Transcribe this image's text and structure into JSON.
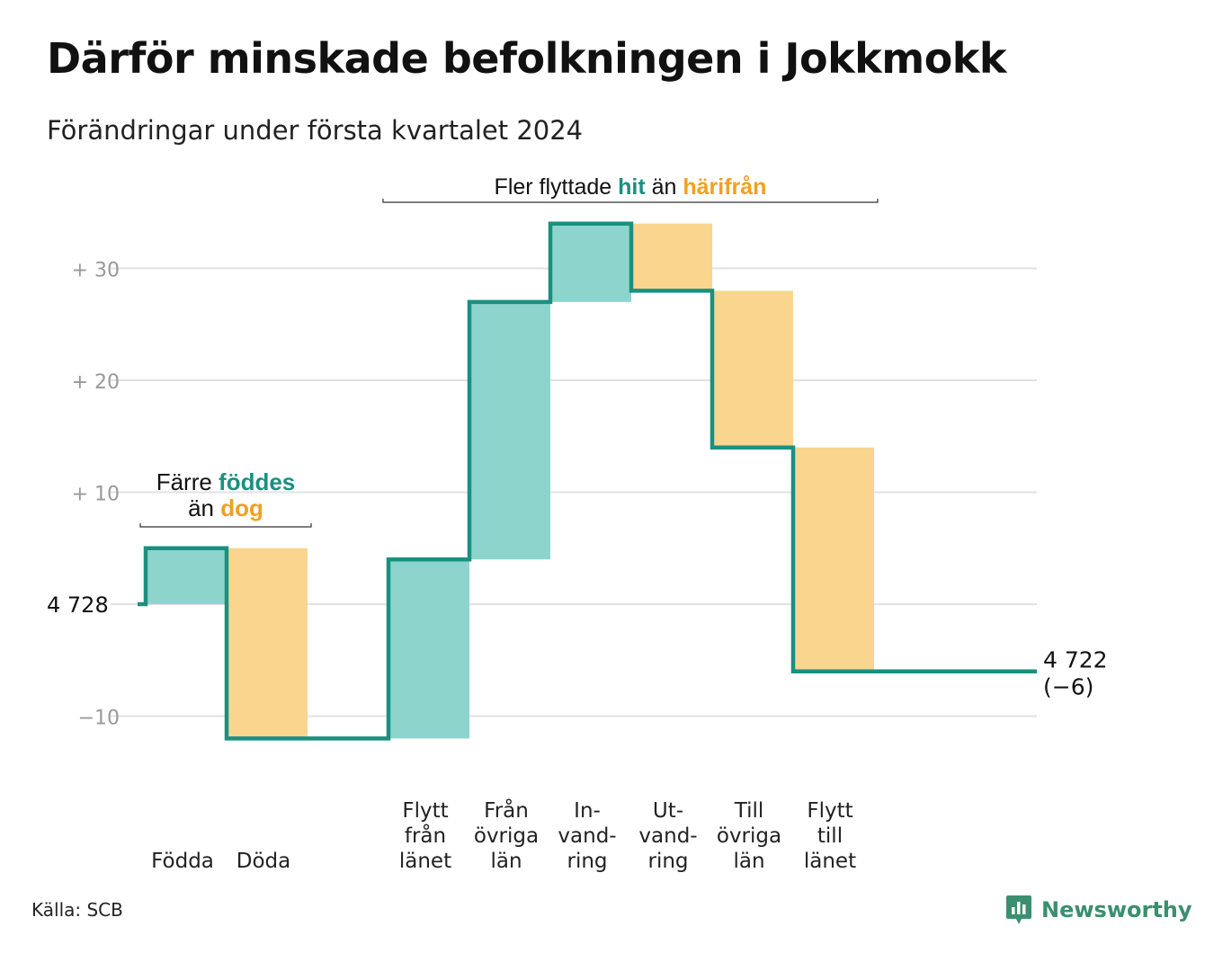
{
  "title": "Därför minskade befolkningen i Jokkmokk",
  "subtitle": "Förändringar under första kvartalet 2024",
  "source": "Källa: SCB",
  "brand": "Newsworthy",
  "colors": {
    "line": "#1a9080",
    "increase": "#8dd5cc",
    "decrease": "#fad58e",
    "teal_text": "#1a9080",
    "orange_text": "#f0a020",
    "grid": "#e2e2e2",
    "tick_text": "#999999",
    "brand": "#3a8f6e"
  },
  "chart_data": {
    "type": "waterfall",
    "start_value": 4728,
    "end_value": 4722,
    "net_change": -6,
    "ylim": [
      -12,
      36
    ],
    "yticks": [
      -10,
      0,
      10,
      20,
      30
    ],
    "ytick_labels": [
      "−10",
      "4 728",
      "+ 10",
      "+ 20",
      "+ 30"
    ],
    "grid": true,
    "steps": [
      {
        "label": [
          "Födda"
        ],
        "value": 5
      },
      {
        "label": [
          "Döda"
        ],
        "value": -17
      },
      {
        "label": [],
        "value": 0
      },
      {
        "label": [
          "Flytt",
          "från",
          "länet"
        ],
        "value": 16
      },
      {
        "label": [
          "Från",
          "övriga",
          "län"
        ],
        "value": 23
      },
      {
        "label": [
          "In-",
          "vand-",
          "ring"
        ],
        "value": 7
      },
      {
        "label": [
          "Ut-",
          "vand-",
          "ring"
        ],
        "value": -6
      },
      {
        "label": [
          "Till",
          "övriga",
          "län"
        ],
        "value": -14
      },
      {
        "label": [
          "Flytt",
          "till",
          "länet"
        ],
        "value": -20
      }
    ],
    "end_label": [
      "4 722",
      "(−6)"
    ],
    "annotations": [
      {
        "id": "births",
        "spans": [
          0,
          1
        ],
        "lines": [
          [
            {
              "text": "Färre ",
              "style": "plain"
            },
            {
              "text": "föddes",
              "style": "teal"
            }
          ],
          [
            {
              "text": "än ",
              "style": "plain"
            },
            {
              "text": "dog",
              "style": "orange"
            }
          ]
        ]
      },
      {
        "id": "moves",
        "spans": [
          3,
          8
        ],
        "lines": [
          [
            {
              "text": "Fler flyttade ",
              "style": "plain"
            },
            {
              "text": "hit",
              "style": "teal"
            },
            {
              "text": " än ",
              "style": "plain"
            },
            {
              "text": "härifrån",
              "style": "orange"
            }
          ]
        ]
      }
    ]
  }
}
